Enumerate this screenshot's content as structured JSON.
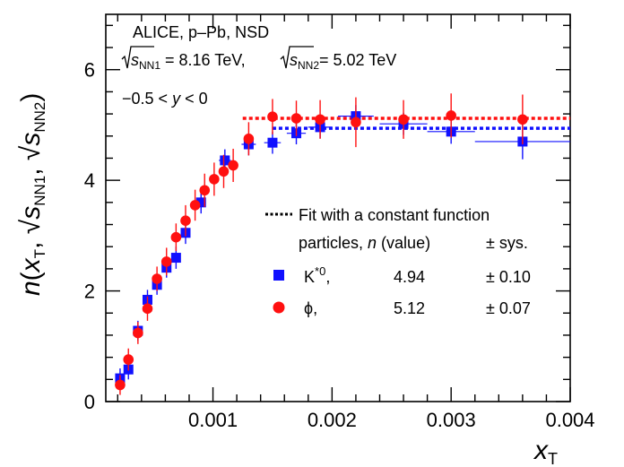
{
  "chart_data": {
    "type": "scatter",
    "xlabel": "x",
    "xlabel_sub": "T",
    "ylabel": "n(xT, √sNN1, √sNN2)",
    "xlim": [
      0.0001,
      0.004
    ],
    "ylim": [
      0,
      7
    ],
    "x_ticks": [
      0.001,
      0.002,
      0.003,
      0.004
    ],
    "x_tick_labels": [
      "0.001",
      "0.002",
      "0.003",
      "0.004"
    ],
    "y_ticks": [
      0,
      2,
      4,
      6
    ],
    "y_tick_labels": [
      "0",
      "2",
      "4",
      "6"
    ],
    "grid": false,
    "annotations": {
      "system": "ALICE, p–Pb, NSD",
      "energy1_s": "s",
      "energy1_sub": "NN1",
      "energy1_val": " = 8.16 TeV, ",
      "energy2_s": "s",
      "energy2_sub": "NN2",
      "energy2_val": "= 5.02 TeV",
      "rapidity_pre": "−0.5 < ",
      "rapidity_var": "y",
      "rapidity_post": " < 0"
    },
    "legend": {
      "fit_label": "Fit with a constant function",
      "header_particles": "particles, ",
      "header_n": "n",
      "header_value": " (value)",
      "header_sys": "± sys.",
      "placement": "right"
    },
    "series": [
      {
        "name": "K*0,",
        "name_base": "K",
        "name_sup": "*0",
        "name_suffix": ",",
        "marker": "square",
        "color": "#1010ff",
        "fit_value": "4.94",
        "fit_sys": "± 0.10",
        "fit_n": 4.94,
        "fit_range": [
          0.0015,
          0.004
        ],
        "points": [
          {
            "x": 0.00022,
            "y": 0.42,
            "ey": 0.18,
            "ex": 2e-05
          },
          {
            "x": 0.00029,
            "y": 0.58,
            "ey": 0.18,
            "ex": 2e-05
          },
          {
            "x": 0.00037,
            "y": 1.28,
            "ey": 0.18,
            "ex": 2e-05
          },
          {
            "x": 0.00045,
            "y": 1.84,
            "ey": 0.18,
            "ex": 2e-05
          },
          {
            "x": 0.00053,
            "y": 2.11,
            "ey": 0.18,
            "ex": 2e-05
          },
          {
            "x": 0.00061,
            "y": 2.42,
            "ey": 0.18,
            "ex": 2e-05
          },
          {
            "x": 0.00069,
            "y": 2.6,
            "ey": 0.2,
            "ex": 3e-05
          },
          {
            "x": 0.00077,
            "y": 3.05,
            "ey": 0.2,
            "ex": 3e-05
          },
          {
            "x": 0.0009,
            "y": 3.6,
            "ey": 0.2,
            "ex": 4e-05
          },
          {
            "x": 0.0011,
            "y": 4.36,
            "ey": 0.2,
            "ex": 5e-05
          },
          {
            "x": 0.0013,
            "y": 4.65,
            "ey": 0.2,
            "ex": 6e-05
          },
          {
            "x": 0.0015,
            "y": 4.68,
            "ey": 0.2,
            "ex": 7e-05
          },
          {
            "x": 0.0017,
            "y": 4.85,
            "ey": 0.2,
            "ex": 8e-05
          },
          {
            "x": 0.0019,
            "y": 4.96,
            "ey": 0.2,
            "ex": 0.0001
          },
          {
            "x": 0.0022,
            "y": 5.16,
            "ey": 0.2,
            "ex": 0.00015
          },
          {
            "x": 0.0026,
            "y": 5.02,
            "ey": 0.2,
            "ex": 0.0002
          },
          {
            "x": 0.003,
            "y": 4.88,
            "ey": 0.22,
            "ex": 0.0002
          },
          {
            "x": 0.0036,
            "y": 4.7,
            "ey": 0.32,
            "ex": 0.0004
          }
        ]
      },
      {
        "name": "ϕ,",
        "name_base": "ϕ",
        "name_sup": "",
        "name_suffix": ",",
        "marker": "circle",
        "color": "#ff1010",
        "fit_value": "5.12",
        "fit_sys": "± 0.07",
        "fit_n": 5.12,
        "fit_range": [
          0.00125,
          0.004
        ],
        "points": [
          {
            "x": 0.00022,
            "y": 0.3,
            "ey": 0.18
          },
          {
            "x": 0.00029,
            "y": 0.76,
            "ey": 0.2
          },
          {
            "x": 0.00037,
            "y": 1.24,
            "ey": 0.2
          },
          {
            "x": 0.00045,
            "y": 1.68,
            "ey": 0.22
          },
          {
            "x": 0.00053,
            "y": 2.22,
            "ey": 0.22
          },
          {
            "x": 0.00061,
            "y": 2.53,
            "ey": 0.25
          },
          {
            "x": 0.00069,
            "y": 2.97,
            "ey": 0.25
          },
          {
            "x": 0.00077,
            "y": 3.27,
            "ey": 0.28
          },
          {
            "x": 0.00085,
            "y": 3.55,
            "ey": 0.28
          },
          {
            "x": 0.00093,
            "y": 3.82,
            "ey": 0.3
          },
          {
            "x": 0.00101,
            "y": 4.02,
            "ey": 0.3
          },
          {
            "x": 0.00109,
            "y": 4.16,
            "ey": 0.3
          },
          {
            "x": 0.00117,
            "y": 4.27,
            "ey": 0.3
          },
          {
            "x": 0.0013,
            "y": 4.75,
            "ey": 0.3
          },
          {
            "x": 0.0015,
            "y": 5.15,
            "ey": 0.32
          },
          {
            "x": 0.0017,
            "y": 5.12,
            "ey": 0.32
          },
          {
            "x": 0.0019,
            "y": 5.1,
            "ey": 0.35
          },
          {
            "x": 0.0022,
            "y": 5.05,
            "ey": 0.45
          },
          {
            "x": 0.0026,
            "y": 5.1,
            "ey": 0.35
          },
          {
            "x": 0.003,
            "y": 5.17,
            "ey": 0.4
          },
          {
            "x": 0.0036,
            "y": 5.1,
            "ey": 0.45
          }
        ]
      }
    ]
  }
}
